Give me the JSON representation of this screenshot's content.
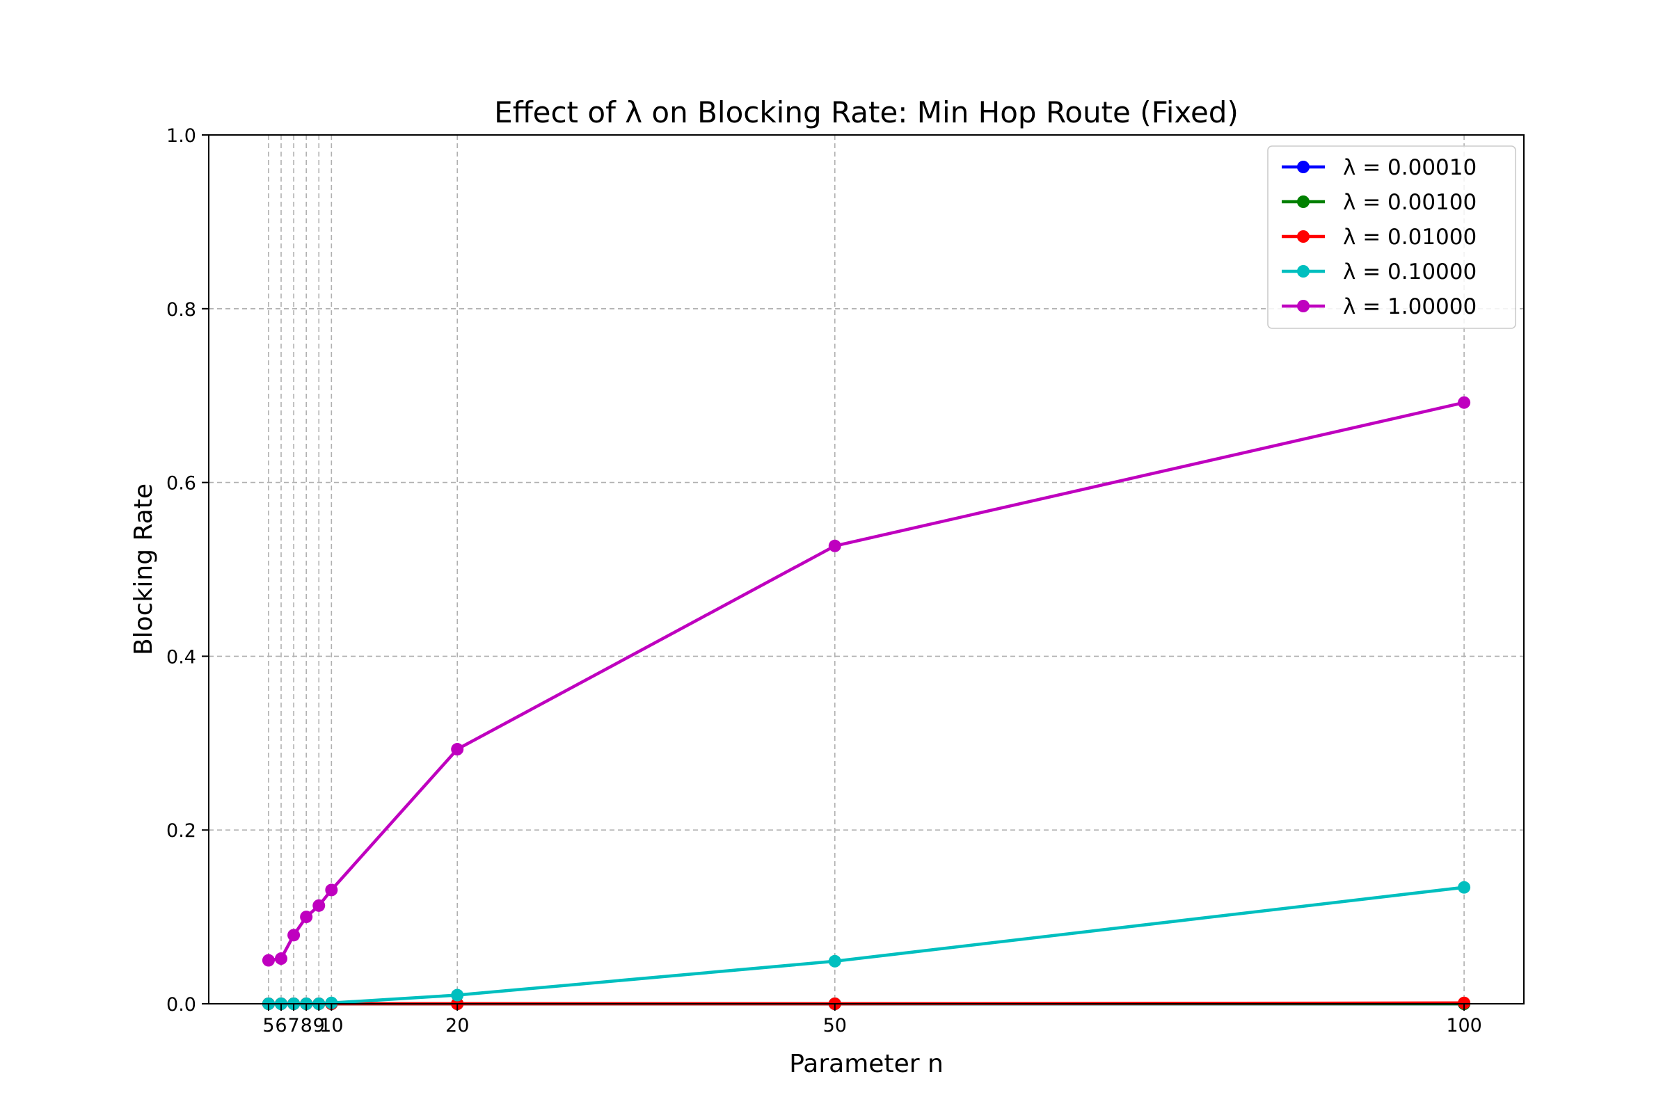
{
  "chart_data": {
    "type": "line",
    "title": "Effect of λ on Blocking Rate: Min Hop Route (Fixed)",
    "xlabel": "Parameter n",
    "ylabel": "Blocking Rate",
    "x": [
      5,
      6,
      7,
      8,
      9,
      10,
      20,
      50,
      100
    ],
    "x_tick_labels": [
      "5",
      "6",
      "7",
      "8",
      "9",
      "10",
      "20",
      "50",
      "100"
    ],
    "xlim": [
      0.25,
      104.75
    ],
    "ylim": [
      0,
      1.0
    ],
    "y_ticks": [
      0.0,
      0.2,
      0.4,
      0.6,
      0.8,
      1.0
    ],
    "y_tick_labels": [
      "0.0",
      "0.2",
      "0.4",
      "0.6",
      "0.8",
      "1.0"
    ],
    "grid": true,
    "legend_position": "top-right",
    "series": [
      {
        "name": "λ = 0.00010",
        "color": "#0000ff",
        "values": [
          0,
          0,
          0,
          0,
          0,
          0,
          0,
          0,
          0
        ]
      },
      {
        "name": "λ = 0.00100",
        "color": "#008000",
        "values": [
          0,
          0,
          0,
          0,
          0,
          0,
          0,
          0,
          0
        ]
      },
      {
        "name": "λ = 0.01000",
        "color": "#ff0000",
        "values": [
          0,
          0,
          0,
          0,
          0,
          0,
          0,
          0,
          0.001
        ]
      },
      {
        "name": "λ = 0.10000",
        "color": "#00bfbf",
        "values": [
          0,
          0,
          0,
          0,
          0,
          0.001,
          0.01,
          0.049,
          0.134
        ]
      },
      {
        "name": "λ = 1.00000",
        "color": "#bf00bf",
        "values": [
          0.05,
          0.052,
          0.079,
          0.1,
          0.113,
          0.131,
          0.293,
          0.527,
          0.692
        ]
      }
    ]
  }
}
